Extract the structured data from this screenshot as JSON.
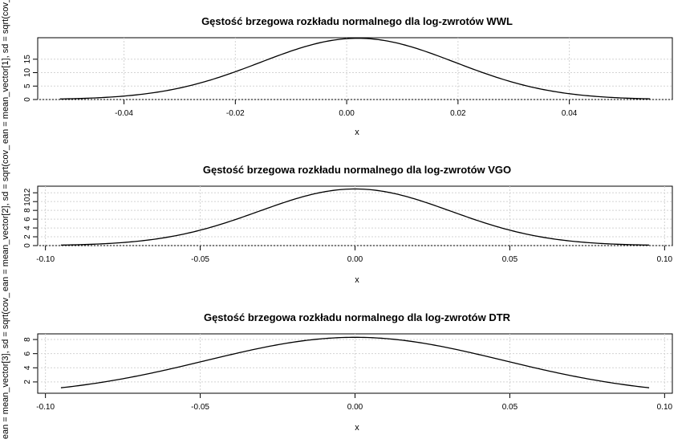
{
  "chart_data": [
    {
      "type": "line",
      "title": "Gęstość brzegowa rozkładu normalnego dla log-zwrotów WWL",
      "xlabel": "x",
      "ylabel": "ean = mean_vector[1], sd = sqrt(cov_",
      "distribution": {
        "mean": 0.002,
        "sd": 0.0175
      },
      "x_range": [
        -0.0515,
        0.0545
      ],
      "xlim": [
        -0.0555,
        0.0585
      ],
      "ylim": [
        0,
        23
      ],
      "x_ticks": [
        -0.04,
        -0.02,
        0.0,
        0.02,
        0.04
      ],
      "x_tick_labels": [
        "-0.04",
        "-0.02",
        "0.00",
        "0.02",
        "0.04"
      ],
      "y_ticks": [
        0,
        5,
        10,
        15
      ],
      "y_tick_labels": [
        "0",
        "5",
        "10",
        "15"
      ],
      "grid": true
    },
    {
      "type": "line",
      "title": "Gęstość brzegowa rozkładu normalnego dla log-zwrotów VGO",
      "xlabel": "x",
      "ylabel": "ean = mean_vector[2], sd = sqrt(cov_",
      "distribution": {
        "mean": 0.0,
        "sd": 0.031
      },
      "x_range": [
        -0.095,
        0.095
      ],
      "xlim": [
        -0.1025,
        0.1025
      ],
      "ylim": [
        0,
        13.5
      ],
      "x_ticks": [
        -0.1,
        -0.05,
        0.0,
        0.05,
        0.1
      ],
      "x_tick_labels": [
        "-0.10",
        "-0.05",
        "0.00",
        "0.05",
        "0.10"
      ],
      "y_ticks": [
        0,
        2,
        4,
        6,
        8,
        10,
        12
      ],
      "y_tick_labels": [
        "0",
        "2",
        "4",
        "6",
        "8",
        "10",
        "12"
      ],
      "grid": true
    },
    {
      "type": "line",
      "title": "Gęstość brzegowa rozkładu normalnego dla log-zwrotów DTR",
      "xlabel": "x",
      "ylabel": "ean = mean_vector[3], sd = sqrt(cov_",
      "distribution": {
        "mean": 0.0,
        "sd": 0.048
      },
      "x_range": [
        -0.095,
        0.095
      ],
      "xlim": [
        -0.1025,
        0.1025
      ],
      "ylim": [
        0.4,
        8.8
      ],
      "x_ticks": [
        -0.1,
        -0.05,
        0.0,
        0.05,
        0.1
      ],
      "x_tick_labels": [
        "-0.10",
        "-0.05",
        "0.00",
        "0.05",
        "0.10"
      ],
      "y_ticks": [
        2,
        4,
        6,
        8
      ],
      "y_tick_labels": [
        "2",
        "4",
        "6",
        "8"
      ],
      "grid": true
    }
  ],
  "colors": {
    "line": "#000000",
    "axis": "#000000",
    "grid": "#d3d3d3",
    "background": "#ffffff"
  }
}
